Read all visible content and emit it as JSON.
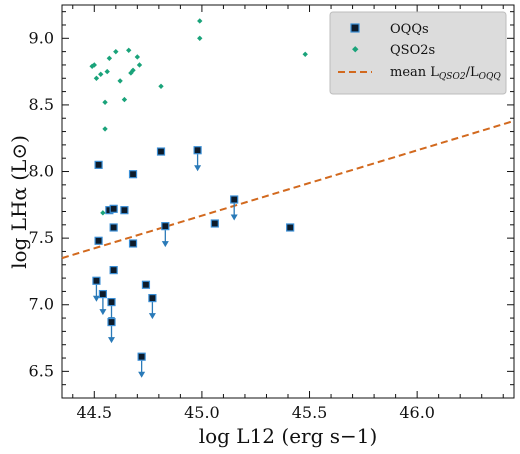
{
  "chart_data": {
    "type": "scatter",
    "xlabel": "log L12 (erg s−1)",
    "ylabel": "log LHα (L⊙)",
    "xlim": [
      44.35,
      46.45
    ],
    "ylim": [
      6.3,
      9.25
    ],
    "x_ticks": [
      "44.5",
      "45.0",
      "45.5",
      "46.0"
    ],
    "x_tick_values": [
      44.5,
      45.0,
      45.5,
      46.0
    ],
    "y_ticks": [
      "6.5",
      "7.0",
      "7.5",
      "8.0",
      "8.5",
      "9.0"
    ],
    "y_tick_values": [
      6.5,
      7.0,
      7.5,
      8.0,
      8.5,
      9.0
    ],
    "legend": {
      "placement": "top-right",
      "entries": [
        {
          "label": "OQQs",
          "marker": "square"
        },
        {
          "label": "QSO2s",
          "marker": "diamond"
        },
        {
          "label_main": "mean L",
          "label_sub1": "QSO2",
          "label_slash": "/L",
          "label_sub2": "OQQ",
          "marker": "dashed-line"
        }
      ]
    },
    "series": [
      {
        "name": "OQQs",
        "color": "#0d1b2a",
        "edge_color": "#3b8fd6",
        "points": [
          {
            "x": 44.52,
            "y": 8.05,
            "upper_limit": false
          },
          {
            "x": 44.52,
            "y": 7.48,
            "upper_limit": false
          },
          {
            "x": 44.51,
            "y": 7.18,
            "upper_limit": true
          },
          {
            "x": 44.54,
            "y": 7.08,
            "upper_limit": true
          },
          {
            "x": 44.57,
            "y": 7.71,
            "upper_limit": false
          },
          {
            "x": 44.59,
            "y": 7.72,
            "upper_limit": false
          },
          {
            "x": 44.59,
            "y": 7.58,
            "upper_limit": false
          },
          {
            "x": 44.59,
            "y": 7.26,
            "upper_limit": false
          },
          {
            "x": 44.58,
            "y": 7.02,
            "upper_limit": true
          },
          {
            "x": 44.58,
            "y": 6.87,
            "upper_limit": true
          },
          {
            "x": 44.64,
            "y": 7.71,
            "upper_limit": false
          },
          {
            "x": 44.68,
            "y": 7.98,
            "upper_limit": false
          },
          {
            "x": 44.68,
            "y": 7.46,
            "upper_limit": false
          },
          {
            "x": 44.74,
            "y": 7.15,
            "upper_limit": false
          },
          {
            "x": 44.77,
            "y": 7.05,
            "upper_limit": true
          },
          {
            "x": 44.72,
            "y": 6.61,
            "upper_limit": true
          },
          {
            "x": 44.81,
            "y": 8.15,
            "upper_limit": false
          },
          {
            "x": 44.83,
            "y": 7.59,
            "upper_limit": true
          },
          {
            "x": 44.98,
            "y": 8.16,
            "upper_limit": true
          },
          {
            "x": 45.06,
            "y": 7.61,
            "upper_limit": false
          },
          {
            "x": 45.15,
            "y": 7.79,
            "upper_limit": true
          },
          {
            "x": 45.41,
            "y": 7.58,
            "upper_limit": false
          }
        ]
      },
      {
        "name": "QSO2s",
        "color": "#1aa37a",
        "points": [
          {
            "x": 44.49,
            "y": 8.79
          },
          {
            "x": 44.5,
            "y": 8.8
          },
          {
            "x": 44.51,
            "y": 8.7
          },
          {
            "x": 44.53,
            "y": 8.73
          },
          {
            "x": 44.55,
            "y": 8.52
          },
          {
            "x": 44.55,
            "y": 8.32
          },
          {
            "x": 44.56,
            "y": 8.75
          },
          {
            "x": 44.57,
            "y": 8.85
          },
          {
            "x": 44.6,
            "y": 8.9
          },
          {
            "x": 44.62,
            "y": 8.68
          },
          {
            "x": 44.64,
            "y": 8.54
          },
          {
            "x": 44.66,
            "y": 8.91
          },
          {
            "x": 44.67,
            "y": 8.74
          },
          {
            "x": 44.68,
            "y": 8.76
          },
          {
            "x": 44.7,
            "y": 8.86
          },
          {
            "x": 44.71,
            "y": 8.8
          },
          {
            "x": 44.81,
            "y": 8.64
          },
          {
            "x": 44.99,
            "y": 9.13
          },
          {
            "x": 44.99,
            "y": 9.0
          },
          {
            "x": 45.48,
            "y": 8.88
          },
          {
            "x": 44.54,
            "y": 7.69
          }
        ]
      },
      {
        "name": "mean LQSO2/LOQQ",
        "type": "line",
        "style": "dashed",
        "color": "#d2691e",
        "x": [
          44.35,
          46.45
        ],
        "y": [
          7.35,
          8.38
        ]
      }
    ]
  }
}
